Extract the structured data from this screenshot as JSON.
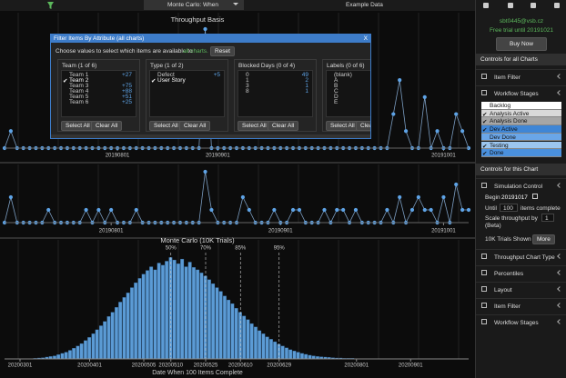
{
  "toolbar": {
    "mode": "Monte Carlo: When",
    "dataset": "Example Data"
  },
  "charts": [
    {
      "type": "line",
      "title": "Throughput Basis",
      "ylim": [
        0,
        7
      ],
      "xlim": [
        0,
        74
      ],
      "xticks": [
        {
          "value": 18,
          "label": "20190801"
        },
        {
          "value": 34,
          "label": "20190901"
        },
        {
          "value": 70,
          "label": "20191001"
        }
      ],
      "values": [
        0,
        1,
        0,
        0,
        0,
        0,
        0,
        0,
        0,
        0,
        0,
        0,
        0,
        0,
        0,
        0,
        0,
        0,
        0,
        0,
        0,
        0,
        0,
        0,
        0,
        0,
        0,
        0,
        0,
        0,
        0,
        0,
        7,
        0,
        0,
        0,
        0,
        0,
        0,
        0,
        0,
        0,
        0,
        0,
        0,
        0,
        0,
        0,
        0,
        0,
        0,
        0,
        0,
        0,
        0,
        0,
        0,
        0,
        0,
        0,
        0,
        0,
        2,
        4,
        1,
        0,
        0,
        3,
        0,
        1,
        0,
        0,
        2,
        1,
        0
      ]
    },
    {
      "type": "line",
      "ylim": [
        0,
        4
      ],
      "xlim": [
        0,
        74
      ],
      "xticks": [
        {
          "value": 17,
          "label": "20190801"
        },
        {
          "value": 44,
          "label": "20190901"
        },
        {
          "value": 70,
          "label": "20191001"
        }
      ],
      "values": [
        0,
        2,
        0,
        0,
        0,
        0,
        0,
        1,
        0,
        0,
        0,
        0,
        0,
        1,
        0,
        1,
        0,
        1,
        0,
        0,
        0,
        1,
        0,
        0,
        0,
        0,
        0,
        0,
        0,
        0,
        0,
        0,
        4,
        1,
        0,
        0,
        0,
        0,
        2,
        1,
        0,
        0,
        0,
        1,
        0,
        0,
        1,
        1,
        0,
        0,
        0,
        1,
        0,
        1,
        1,
        0,
        1,
        0,
        0,
        0,
        0,
        1,
        0,
        2,
        0,
        1,
        2,
        1,
        1,
        0,
        2,
        0,
        3,
        1,
        1
      ]
    },
    {
      "type": "histogram",
      "title": "Monte Carlo (10K Trials)",
      "x_label": "Date When 100 Items Complete",
      "xlim": [
        -8,
        112
      ],
      "ylim": [
        0,
        340
      ],
      "xticks": [
        {
          "value": -4,
          "label": "20200301"
        },
        {
          "value": 14,
          "label": "20200401"
        },
        {
          "value": 28,
          "label": "20200505"
        },
        {
          "value": 35,
          "label": "20200510"
        },
        {
          "value": 44,
          "label": "20200525"
        },
        {
          "value": 53,
          "label": "20200610"
        },
        {
          "value": 63,
          "label": "20200629"
        },
        {
          "value": 83,
          "label": "20200801"
        },
        {
          "value": 97,
          "label": "20200901"
        }
      ],
      "percentiles": [
        {
          "label": "50%",
          "value": 35
        },
        {
          "label": "70%",
          "value": 44
        },
        {
          "label": "85%",
          "value": 53
        },
        {
          "label": "95%",
          "value": 63
        }
      ],
      "values": [
        2,
        3,
        4,
        6,
        8,
        10,
        14,
        18,
        22,
        28,
        35,
        42,
        50,
        60,
        70,
        82,
        95,
        108,
        122,
        138,
        152,
        168,
        185,
        200,
        215,
        232,
        248,
        262,
        276,
        288,
        300,
        290,
        312,
        305,
        318,
        330,
        322,
        310,
        325,
        300,
        315,
        298,
        290,
        280,
        270,
        258,
        245,
        232,
        220,
        205,
        192,
        180,
        165,
        152,
        140,
        128,
        115,
        104,
        92,
        82,
        72,
        64,
        56,
        48,
        42,
        36,
        30,
        26,
        22,
        18,
        15,
        12,
        10,
        8,
        7,
        6,
        5,
        4,
        3,
        3,
        2,
        2,
        2,
        1,
        1,
        1,
        1,
        1,
        1,
        1
      ]
    }
  ],
  "dialog": {
    "title": "Filter Items By Attribute (all charts)",
    "close": "X",
    "instructions": "Choose values to select which items are available to",
    "instructions_link": "all charts.",
    "reset": "Reset",
    "panels": [
      {
        "title": "Team (1 of 6)",
        "items": [
          {
            "label": "Team 1",
            "count": "+27"
          },
          {
            "label": "Team 2",
            "checked": true
          },
          {
            "label": "Team 3",
            "count": "+75"
          },
          {
            "label": "Team 4",
            "count": "+88"
          },
          {
            "label": "Team 5",
            "count": "+51"
          },
          {
            "label": "Team 6",
            "count": "+25"
          }
        ],
        "buttons": [
          "Select All",
          "Clear All"
        ]
      },
      {
        "title": "Type (1 of 2)",
        "items": [
          {
            "label": "Defect",
            "count": "+5"
          },
          {
            "label": "User Story",
            "checked": true
          }
        ],
        "buttons": [
          "Select All",
          "Clear All"
        ]
      },
      {
        "title": "Blocked Days (0 of 4)",
        "items": [
          {
            "label": "0",
            "count": "49"
          },
          {
            "label": "1",
            "count": "2"
          },
          {
            "label": "3",
            "count": "1"
          },
          {
            "label": "8",
            "count": "1"
          }
        ],
        "buttons": [
          "Select All",
          "Clear All"
        ]
      },
      {
        "title": "Labels (0 of 6)",
        "items": [
          {
            "label": "(blank)"
          },
          {
            "label": "A"
          },
          {
            "label": "B"
          },
          {
            "label": "C"
          },
          {
            "label": "D"
          },
          {
            "label": "E"
          }
        ],
        "buttons": [
          "Select All",
          "Clear All"
        ]
      }
    ]
  },
  "sidebar": {
    "user": "sbt0445@vsb.cz",
    "trial": "Free trial until 20191021",
    "buy": "Buy Now",
    "all_header": "Controls for all Charts",
    "all_items": [
      "Item Filter",
      "Workflow Stages"
    ],
    "stages": [
      {
        "label": "Backlog",
        "checked": false,
        "color": "#ffffff"
      },
      {
        "label": "Analysis Active",
        "checked": true,
        "color": "#d9d9d9"
      },
      {
        "label": "Analysis Done",
        "checked": true,
        "color": "#a6a6a6"
      },
      {
        "label": "Dev Active",
        "checked": true,
        "color": "#3f86d6"
      },
      {
        "label": "Dev Done",
        "checked": false,
        "color": "#6aa6e8"
      },
      {
        "label": "Testing",
        "checked": true,
        "color": "#9cc6f0"
      },
      {
        "label": "Done",
        "checked": true,
        "color": "#4a90dd"
      }
    ],
    "this_header": "Controls for this Chart",
    "simulation": "Simulation Control",
    "begin_label": "Begin",
    "begin": "20191017",
    "until_label": "Until",
    "until": "100",
    "until_suffix": "items complete",
    "scale_label": "Scale throughput by",
    "scale": "1",
    "beta": "(Beta)",
    "trials": "10K Trials Shown",
    "more": "More",
    "this_items": [
      "Throughput Chart Type",
      "Percentiles",
      "Layout",
      "Item Filter",
      "Workflow Stages"
    ]
  }
}
